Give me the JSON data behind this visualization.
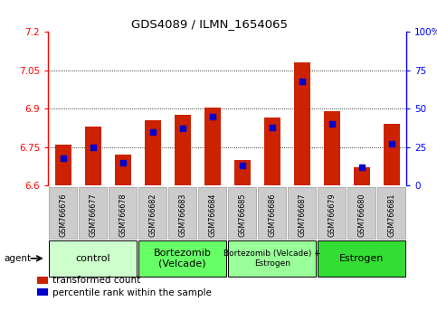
{
  "title": "GDS4089 / ILMN_1654065",
  "samples": [
    "GSM766676",
    "GSM766677",
    "GSM766678",
    "GSM766682",
    "GSM766683",
    "GSM766684",
    "GSM766685",
    "GSM766686",
    "GSM766687",
    "GSM766679",
    "GSM766680",
    "GSM766681"
  ],
  "transformed_counts": [
    6.76,
    6.83,
    6.72,
    6.855,
    6.875,
    6.905,
    6.7,
    6.865,
    7.08,
    6.89,
    6.67,
    6.84
  ],
  "percentile_ranks": [
    18,
    25,
    15,
    35,
    37,
    45,
    13,
    38,
    68,
    40,
    12,
    27
  ],
  "ymin": 6.6,
  "ymax": 7.2,
  "yticks": [
    6.6,
    6.75,
    6.9,
    7.05,
    7.2
  ],
  "ytick_labels": [
    "6.6",
    "6.75",
    "6.9",
    "7.05",
    "7.2"
  ],
  "right_yticks": [
    0,
    25,
    50,
    75,
    100
  ],
  "right_ytick_labels": [
    "0",
    "25",
    "50",
    "75",
    "100%"
  ],
  "bar_color": "#cc2200",
  "dot_color": "#0000cc",
  "bar_width": 0.55,
  "groups": [
    {
      "label": "control",
      "start": 0,
      "end": 3,
      "color": "#ccffcc",
      "font_size": 8
    },
    {
      "label": "Bortezomib\n(Velcade)",
      "start": 3,
      "end": 6,
      "color": "#66ff66",
      "font_size": 8
    },
    {
      "label": "Bortezomib (Velcade) +\nEstrogen",
      "start": 6,
      "end": 9,
      "color": "#99ff99",
      "font_size": 6.5
    },
    {
      "label": "Estrogen",
      "start": 9,
      "end": 12,
      "color": "#33dd33",
      "font_size": 8
    }
  ],
  "agent_label": "agent",
  "legend_bar_label": "transformed count",
  "legend_dot_label": "percentile rank within the sample",
  "tick_bg_color": "#cccccc"
}
